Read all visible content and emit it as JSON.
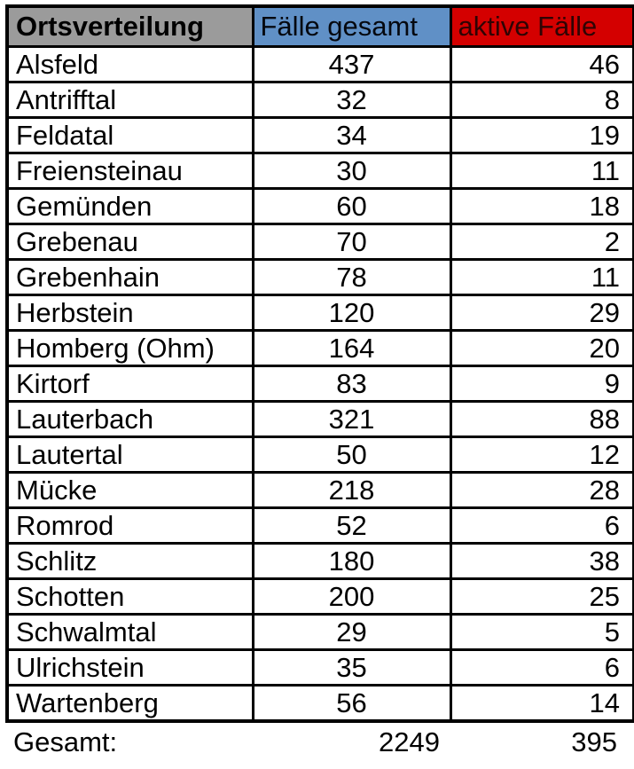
{
  "colors": {
    "header_location_bg": "#9b9b9b",
    "header_location_text": "#000000",
    "header_total_bg": "#6090c6",
    "header_total_text": "#05080f",
    "header_active_bg": "#d40000",
    "header_active_text": "#2f0404",
    "border": "#000000",
    "row_bg": "#ffffff",
    "row_text": "#000000"
  },
  "chart_data": {
    "type": "table",
    "title": "Ortsverteilung",
    "columns": [
      "Ortsverteilung",
      "Fälle gesamt",
      "aktive Fälle"
    ],
    "categories": [
      "Alsfeld",
      "Antrifftal",
      "Feldatal",
      "Freiensteinau",
      "Gemünden",
      "Grebenau",
      "Grebenhain",
      "Herbstein",
      "Homberg (Ohm)",
      "Kirtorf",
      "Lauterbach",
      "Lautertal",
      "Mücke",
      "Romrod",
      "Schlitz",
      "Schotten",
      "Schwalmtal",
      "Ulrichstein",
      "Wartenberg"
    ],
    "series": [
      {
        "name": "Fälle gesamt",
        "values": [
          437,
          32,
          34,
          30,
          60,
          70,
          78,
          120,
          164,
          83,
          321,
          50,
          218,
          52,
          180,
          200,
          29,
          35,
          56
        ]
      },
      {
        "name": "aktive Fälle",
        "values": [
          46,
          8,
          19,
          11,
          18,
          2,
          11,
          29,
          20,
          9,
          88,
          12,
          28,
          6,
          38,
          25,
          5,
          6,
          14
        ]
      }
    ],
    "totals": {
      "label": "Gesamt:",
      "total_cases": 2249,
      "active_cases": 395
    },
    "layout": "grid-table, black borders, header cells color-coded gray/blue/red, totals row without borders below table"
  }
}
